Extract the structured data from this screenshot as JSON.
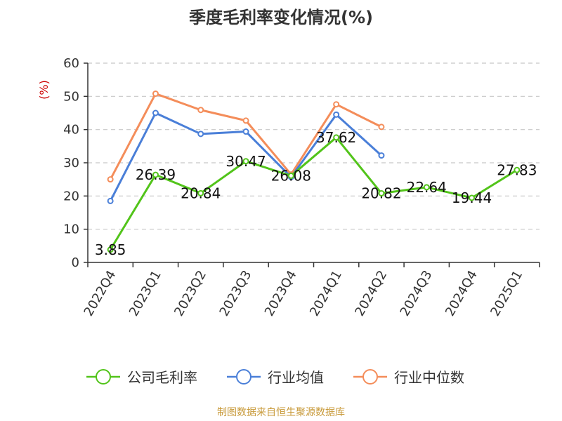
{
  "chart_data": {
    "type": "line",
    "title": "季度毛利率变化情况(%)",
    "ylabel": "(%)",
    "ylim": [
      0,
      60
    ],
    "yticks": [
      0,
      10,
      20,
      30,
      40,
      50,
      60
    ],
    "grid": true,
    "legend_position": "bottom",
    "categories": [
      "2022Q4",
      "2023Q1",
      "2023Q2",
      "2023Q3",
      "2023Q4",
      "2024Q1",
      "2024Q2",
      "2024Q3",
      "2024Q4",
      "2025Q1"
    ],
    "series": [
      {
        "name": "公司毛利率",
        "color": "#52c41a",
        "values": [
          3.85,
          26.39,
          20.84,
          30.47,
          26.08,
          37.62,
          20.82,
          22.64,
          19.44,
          27.83
        ],
        "data_labels": [
          "3.85",
          "26.39",
          "20.84",
          "30.47",
          "26.08",
          "37.62",
          "20.82",
          "22.64",
          "19.44",
          "27.83"
        ]
      },
      {
        "name": "行业均值",
        "color": "#4a7fd8",
        "values": [
          18.5,
          45.0,
          38.7,
          39.4,
          25.7,
          44.5,
          32.2,
          null,
          null,
          null
        ]
      },
      {
        "name": "行业中位数",
        "color": "#f48d5a",
        "values": [
          25.0,
          50.8,
          45.9,
          42.7,
          26.5,
          47.6,
          40.8,
          null,
          null,
          null
        ]
      }
    ]
  },
  "source": "制图数据来自恒生聚源数据库",
  "colors": {
    "ylabel": "#cc0000",
    "source": "#c89a3a",
    "grid": "#c8c8c8",
    "axis": "#333333"
  }
}
